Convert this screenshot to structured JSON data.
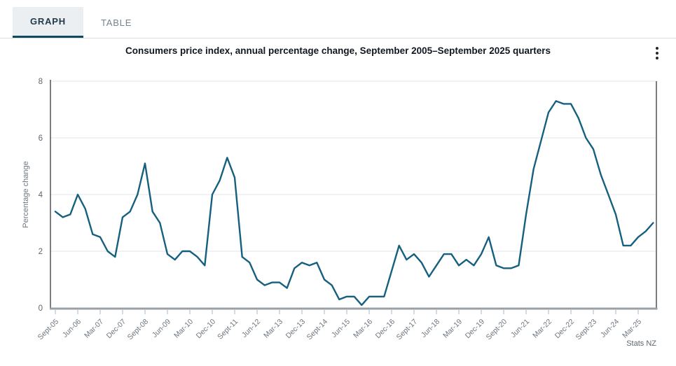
{
  "tabs": {
    "graph_label": "GRAPH",
    "table_label": "TABLE"
  },
  "header": {
    "title": "Consumers price index, annual percentage change, September 2005–September 2025 quarters",
    "menu_icon": "kebab-vertical-ellipsis"
  },
  "source": "Stats NZ",
  "colors": {
    "line": "#16607f",
    "tab_active_underline": "#0f4a5f",
    "tab_active_bg": "#eceff1",
    "grid": "#e4e6e8",
    "axis_dark": "#33383b",
    "axis_gray": "#9aa0a4",
    "x_tick": "#c4d0dd"
  },
  "chart_data": {
    "type": "line",
    "title": "Consumers price index, annual percentage change, September 2005–September 2025 quarters",
    "xlabel": "",
    "ylabel": "Percentage change",
    "ylim": [
      0,
      8
    ],
    "yticks": [
      0,
      2,
      4,
      6,
      8
    ],
    "grid": "horizontal",
    "legend": "none",
    "x_frequency": "quarterly",
    "x_range_start": "Sept-05",
    "x_range_end": "Sept-25",
    "x_tick_step": 3,
    "x_tick_labels": [
      "Sept-05",
      "Jun-06",
      "Mar-07",
      "Dec-07",
      "Sept-08",
      "Jun-09",
      "Mar-10",
      "Dec-10",
      "Sept-11",
      "Jun-12",
      "Mar-13",
      "Dec-13",
      "Sept-14",
      "Jun-15",
      "Mar-16",
      "Dec-16",
      "Sept-17",
      "Jun-18",
      "Mar-19",
      "Dec-19",
      "Sept-20",
      "Jun-21",
      "Mar-22",
      "Dec-22",
      "Sept-23",
      "Jun-24",
      "Mar-25"
    ],
    "series": [
      {
        "name": "Consumers price index, annual percentage change",
        "values": [
          3.4,
          3.2,
          3.3,
          4.0,
          3.5,
          2.6,
          2.5,
          2.0,
          1.8,
          3.2,
          3.4,
          4.0,
          5.1,
          3.4,
          3.0,
          1.9,
          1.7,
          2.0,
          2.0,
          1.8,
          1.5,
          4.0,
          4.5,
          5.3,
          4.6,
          1.8,
          1.6,
          1.0,
          0.8,
          0.9,
          0.9,
          0.7,
          1.4,
          1.6,
          1.5,
          1.6,
          1.0,
          0.8,
          0.3,
          0.4,
          0.4,
          0.1,
          0.4,
          0.4,
          0.4,
          1.3,
          2.2,
          1.7,
          1.9,
          1.6,
          1.1,
          1.5,
          1.9,
          1.9,
          1.5,
          1.7,
          1.5,
          1.9,
          2.5,
          1.5,
          1.4,
          1.4,
          1.5,
          3.3,
          4.9,
          5.9,
          6.9,
          7.3,
          7.2,
          7.2,
          6.7,
          6.0,
          5.6,
          4.7,
          4.0,
          3.3,
          2.2,
          2.2,
          2.5,
          2.7,
          3.0
        ]
      }
    ]
  }
}
